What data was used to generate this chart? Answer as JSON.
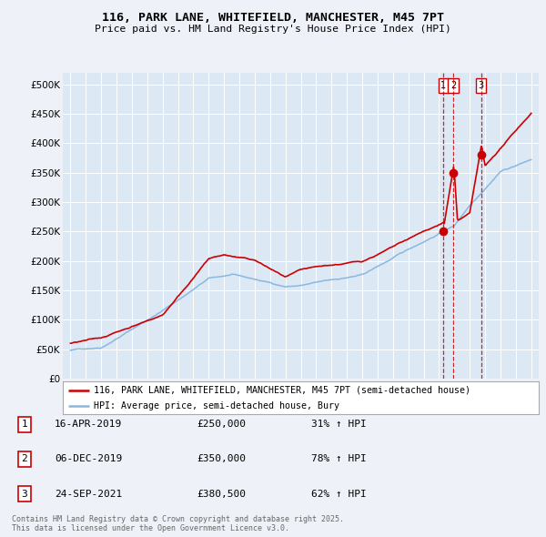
{
  "title1": "116, PARK LANE, WHITEFIELD, MANCHESTER, M45 7PT",
  "title2": "Price paid vs. HM Land Registry's House Price Index (HPI)",
  "red_label": "116, PARK LANE, WHITEFIELD, MANCHESTER, M45 7PT (semi-detached house)",
  "blue_label": "HPI: Average price, semi-detached house, Bury",
  "footnote": "Contains HM Land Registry data © Crown copyright and database right 2025.\nThis data is licensed under the Open Government Licence v3.0.",
  "transactions": [
    {
      "num": 1,
      "date": "16-APR-2019",
      "price": "£250,000",
      "pct": "31% ↑ HPI"
    },
    {
      "num": 2,
      "date": "06-DEC-2019",
      "price": "£350,000",
      "pct": "78% ↑ HPI"
    },
    {
      "num": 3,
      "date": "24-SEP-2021",
      "price": "£380,500",
      "pct": "62% ↑ HPI"
    }
  ],
  "vline1_x": 2019.29,
  "vline2_x": 2019.92,
  "vline3_x": 2021.73,
  "point1": [
    2019.29,
    250000
  ],
  "point2": [
    2019.92,
    350000
  ],
  "point3": [
    2021.73,
    380500
  ],
  "ylim": [
    0,
    520000
  ],
  "xlim": [
    1994.5,
    2025.5
  ],
  "yticks": [
    0,
    50000,
    100000,
    150000,
    200000,
    250000,
    300000,
    350000,
    400000,
    450000,
    500000
  ],
  "background_color": "#eef2f8",
  "plot_bg": "#dde8f5",
  "grid_color": "#ffffff",
  "red_color": "#cc0000",
  "blue_color": "#88b8e0",
  "dashed_color": "#cc0000"
}
